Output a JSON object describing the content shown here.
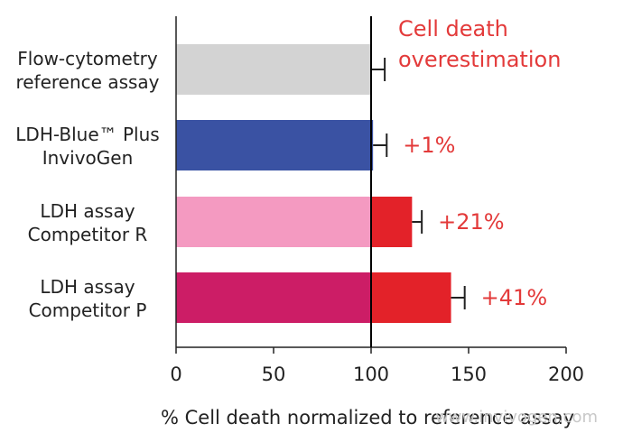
{
  "chart_data": {
    "type": "bar",
    "orientation": "horizontal",
    "categories": [
      [
        "Flow-cytometry",
        "reference assay"
      ],
      [
        "LDH-Blue™ Plus",
        "InvivoGen"
      ],
      [
        "LDH assay",
        "Competitor R"
      ],
      [
        "LDH assay",
        "Competitor P"
      ]
    ],
    "base_values": [
      100,
      101,
      100,
      100
    ],
    "totals": [
      100,
      101,
      121,
      141
    ],
    "error_upper": [
      107,
      108,
      126,
      148
    ],
    "annotations": [
      "",
      "+1%",
      "+21%",
      "+41%"
    ],
    "xticks": [
      "0",
      "50",
      "100",
      "150",
      "200"
    ],
    "xlim": [
      0,
      200
    ],
    "reference_line": 100,
    "xlabel": "% Cell death normalized to reference assay",
    "note": [
      "Cell death",
      "overestimation"
    ],
    "watermark": "www.invivogen.com",
    "colors": {
      "bars": [
        "#d3d3d3",
        "#3a52a3",
        "#f49ac1",
        "#cc1d66"
      ],
      "overestimation": "#e32229",
      "annotation_text": "#e33a3a",
      "axis": "#222222"
    }
  }
}
